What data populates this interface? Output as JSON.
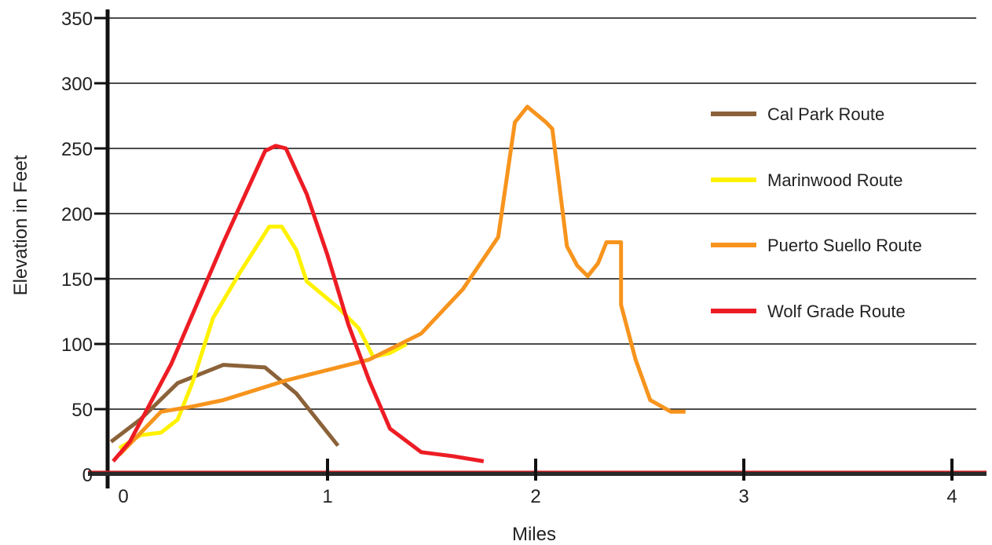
{
  "chart_data": {
    "type": "line",
    "title": "",
    "xlabel": "Miles",
    "ylabel": "Elevation in Feet",
    "xlim": [
      0,
      4
    ],
    "ylim": [
      0,
      350
    ],
    "x_ticks": [
      0,
      1,
      2,
      3,
      4
    ],
    "x_tick_labels": [
      "0",
      "1",
      "2",
      "3",
      "4"
    ],
    "y_ticks": [
      0,
      50,
      100,
      150,
      200,
      250,
      300,
      350
    ],
    "y_tick_labels": [
      "0",
      "50",
      "100",
      "150",
      "200",
      "250",
      "300",
      "350"
    ],
    "grid": "horizontal",
    "legend_position": "right",
    "series": [
      {
        "name": "Cal Park Route",
        "color": "#8B6239",
        "points": [
          [
            -0.04,
            25
          ],
          [
            0.1,
            42
          ],
          [
            0.28,
            70
          ],
          [
            0.5,
            84
          ],
          [
            0.7,
            82
          ],
          [
            0.85,
            62
          ],
          [
            1.05,
            22
          ]
        ]
      },
      {
        "name": "Marinwood Route",
        "color": "#FFF200",
        "points": [
          [
            0.0,
            20
          ],
          [
            0.1,
            30
          ],
          [
            0.2,
            32
          ],
          [
            0.28,
            42
          ],
          [
            0.35,
            70
          ],
          [
            0.45,
            120
          ],
          [
            0.58,
            155
          ],
          [
            0.72,
            190
          ],
          [
            0.78,
            190
          ],
          [
            0.85,
            172
          ],
          [
            0.9,
            148
          ],
          [
            1.05,
            128
          ],
          [
            1.15,
            112
          ],
          [
            1.22,
            90
          ],
          [
            1.3,
            93
          ],
          [
            1.38,
            100
          ]
        ]
      },
      {
        "name": "Puerto Suello Route",
        "color": "#F7941D",
        "points": [
          [
            0.0,
            15
          ],
          [
            0.2,
            48
          ],
          [
            0.35,
            52
          ],
          [
            0.5,
            57
          ],
          [
            0.8,
            72
          ],
          [
            1.0,
            80
          ],
          [
            1.2,
            88
          ],
          [
            1.45,
            108
          ],
          [
            1.65,
            142
          ],
          [
            1.82,
            182
          ],
          [
            1.9,
            270
          ],
          [
            1.96,
            282
          ],
          [
            2.05,
            270
          ],
          [
            2.08,
            265
          ],
          [
            2.15,
            175
          ],
          [
            2.2,
            160
          ],
          [
            2.25,
            152
          ],
          [
            2.3,
            162
          ],
          [
            2.34,
            178
          ],
          [
            2.41,
            178
          ],
          [
            2.41,
            130
          ],
          [
            2.48,
            88
          ],
          [
            2.55,
            57
          ],
          [
            2.65,
            48
          ],
          [
            2.72,
            48
          ]
        ]
      },
      {
        "name": "Wolf Grade Route",
        "color": "#ED1C24",
        "points": [
          [
            -0.03,
            10
          ],
          [
            0.05,
            25
          ],
          [
            0.25,
            85
          ],
          [
            0.5,
            178
          ],
          [
            0.7,
            248
          ],
          [
            0.75,
            252
          ],
          [
            0.8,
            250
          ],
          [
            0.9,
            215
          ],
          [
            1.0,
            168
          ],
          [
            1.1,
            115
          ],
          [
            1.2,
            72
          ],
          [
            1.3,
            35
          ],
          [
            1.45,
            17
          ],
          [
            1.6,
            14
          ],
          [
            1.75,
            10
          ]
        ]
      }
    ]
  }
}
